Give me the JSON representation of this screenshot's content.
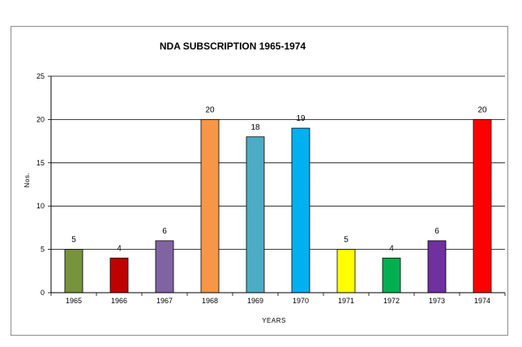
{
  "chart_data": {
    "type": "bar",
    "title": "NDA SUBSCRIPTION 1965-1974",
    "xlabel": "YEARS",
    "ylabel": "Nos.",
    "ylim": [
      0,
      25
    ],
    "yticks": [
      "0",
      "5",
      "10",
      "15",
      "20",
      "25"
    ],
    "grid": true,
    "categories": [
      "1965",
      "1966",
      "1967",
      "1968",
      "1969",
      "1970",
      "1971",
      "1972",
      "1973",
      "1974"
    ],
    "values": [
      5,
      4,
      6,
      20,
      18,
      19,
      5,
      4,
      6,
      20
    ],
    "data_labels": [
      "5",
      "4",
      "6",
      "20",
      "18",
      "19",
      "5",
      "4",
      "6",
      "20"
    ],
    "colors": [
      "#77933c",
      "#c00000",
      "#8064a2",
      "#f79646",
      "#4bacc6",
      "#00b0f0",
      "#ffff00",
      "#00b050",
      "#7030a0",
      "#ff0000"
    ]
  }
}
